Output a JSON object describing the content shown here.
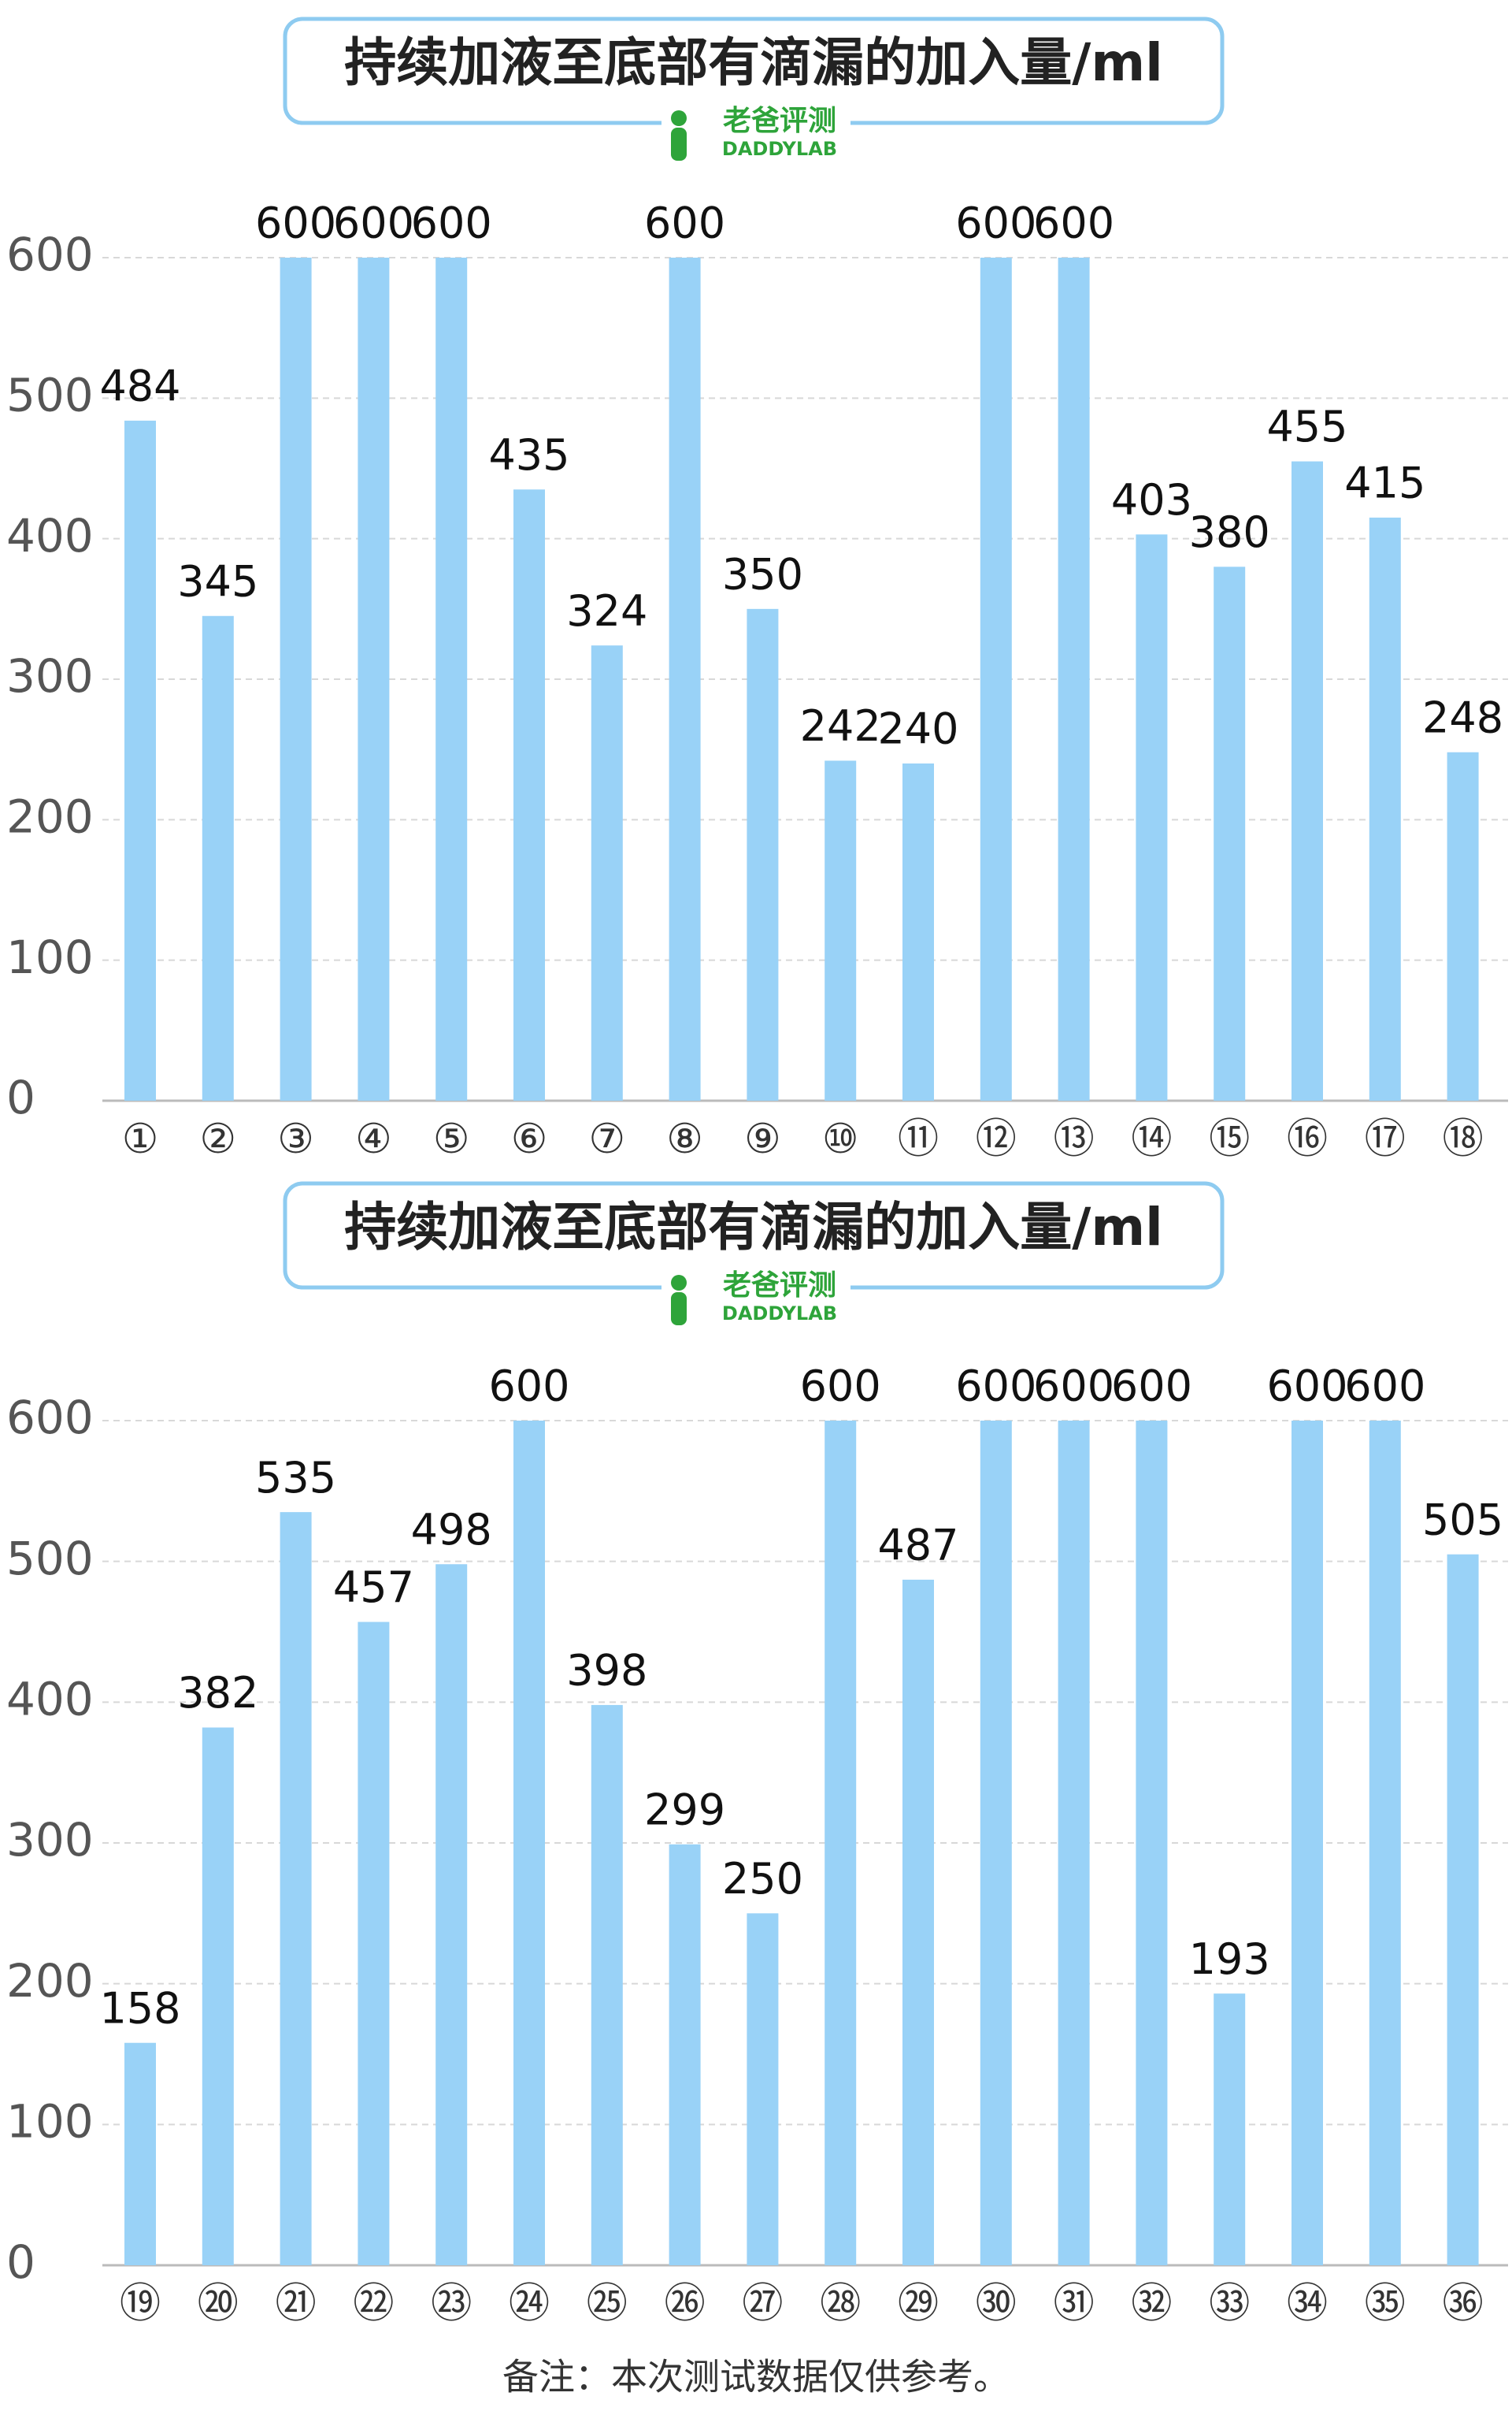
{
  "chart_data": [
    {
      "type": "bar",
      "title": "持续加液至底部有滴漏的加入量/ml",
      "logo_text": "老爸评测",
      "logo_subtext": "DADDYLAB",
      "categories": [
        "①",
        "②",
        "③",
        "④",
        "⑤",
        "⑥",
        "⑦",
        "⑧",
        "⑨",
        "⑩",
        "⑪",
        "⑫",
        "⑬",
        "⑭",
        "⑮",
        "⑯",
        "⑰",
        "⑱"
      ],
      "values": [
        484,
        345,
        600,
        600,
        600,
        435,
        324,
        600,
        350,
        242,
        240,
        600,
        600,
        403,
        380,
        455,
        415,
        248
      ],
      "color": "#99d2f7",
      "ylim": [
        0,
        600
      ],
      "yticks": [
        0,
        100,
        200,
        300,
        400,
        500,
        600
      ],
      "grid": true
    },
    {
      "type": "bar",
      "title": "持续加液至底部有滴漏的加入量/ml",
      "logo_text": "老爸评测",
      "logo_subtext": "DADDYLAB",
      "categories": [
        "⑲",
        "⑳",
        "㉑",
        "㉒",
        "㉓",
        "㉔",
        "㉕",
        "㉖",
        "㉗",
        "㉘",
        "㉙",
        "㉚",
        "㉛",
        "㉜",
        "㉝",
        "㉞",
        "㉟",
        "㊱"
      ],
      "values": [
        158,
        382,
        535,
        457,
        498,
        600,
        398,
        299,
        250,
        600,
        487,
        600,
        600,
        600,
        193,
        600,
        600,
        505
      ],
      "color": "#99d2f7",
      "ylim": [
        0,
        600
      ],
      "yticks": [
        0,
        100,
        200,
        300,
        400,
        500,
        600
      ],
      "grid": true
    }
  ],
  "note": "备注：本次测试数据仅供参考。"
}
